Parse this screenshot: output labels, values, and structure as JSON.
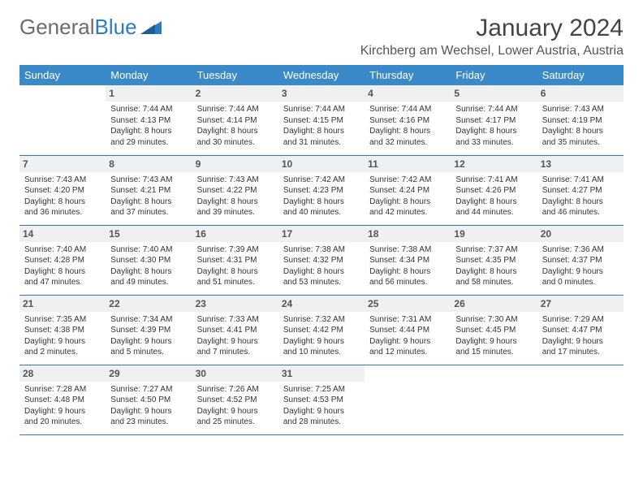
{
  "logo": {
    "part1": "General",
    "part2": "Blue"
  },
  "title": "January 2024",
  "location": "Kirchberg am Wechsel, Lower Austria, Austria",
  "colors": {
    "header_bg": "#3a8ac9",
    "row_border": "#2f7bbf",
    "daynum_bg": "#eef0f2",
    "text": "#333333"
  },
  "weekdays": [
    "Sunday",
    "Monday",
    "Tuesday",
    "Wednesday",
    "Thursday",
    "Friday",
    "Saturday"
  ],
  "weeks": [
    [
      {
        "n": ""
      },
      {
        "n": "1",
        "sr": "Sunrise: 7:44 AM",
        "ss": "Sunset: 4:13 PM",
        "dl": "Daylight: 8 hours and 29 minutes."
      },
      {
        "n": "2",
        "sr": "Sunrise: 7:44 AM",
        "ss": "Sunset: 4:14 PM",
        "dl": "Daylight: 8 hours and 30 minutes."
      },
      {
        "n": "3",
        "sr": "Sunrise: 7:44 AM",
        "ss": "Sunset: 4:15 PM",
        "dl": "Daylight: 8 hours and 31 minutes."
      },
      {
        "n": "4",
        "sr": "Sunrise: 7:44 AM",
        "ss": "Sunset: 4:16 PM",
        "dl": "Daylight: 8 hours and 32 minutes."
      },
      {
        "n": "5",
        "sr": "Sunrise: 7:44 AM",
        "ss": "Sunset: 4:17 PM",
        "dl": "Daylight: 8 hours and 33 minutes."
      },
      {
        "n": "6",
        "sr": "Sunrise: 7:43 AM",
        "ss": "Sunset: 4:19 PM",
        "dl": "Daylight: 8 hours and 35 minutes."
      }
    ],
    [
      {
        "n": "7",
        "sr": "Sunrise: 7:43 AM",
        "ss": "Sunset: 4:20 PM",
        "dl": "Daylight: 8 hours and 36 minutes."
      },
      {
        "n": "8",
        "sr": "Sunrise: 7:43 AM",
        "ss": "Sunset: 4:21 PM",
        "dl": "Daylight: 8 hours and 37 minutes."
      },
      {
        "n": "9",
        "sr": "Sunrise: 7:43 AM",
        "ss": "Sunset: 4:22 PM",
        "dl": "Daylight: 8 hours and 39 minutes."
      },
      {
        "n": "10",
        "sr": "Sunrise: 7:42 AM",
        "ss": "Sunset: 4:23 PM",
        "dl": "Daylight: 8 hours and 40 minutes."
      },
      {
        "n": "11",
        "sr": "Sunrise: 7:42 AM",
        "ss": "Sunset: 4:24 PM",
        "dl": "Daylight: 8 hours and 42 minutes."
      },
      {
        "n": "12",
        "sr": "Sunrise: 7:41 AM",
        "ss": "Sunset: 4:26 PM",
        "dl": "Daylight: 8 hours and 44 minutes."
      },
      {
        "n": "13",
        "sr": "Sunrise: 7:41 AM",
        "ss": "Sunset: 4:27 PM",
        "dl": "Daylight: 8 hours and 46 minutes."
      }
    ],
    [
      {
        "n": "14",
        "sr": "Sunrise: 7:40 AM",
        "ss": "Sunset: 4:28 PM",
        "dl": "Daylight: 8 hours and 47 minutes."
      },
      {
        "n": "15",
        "sr": "Sunrise: 7:40 AM",
        "ss": "Sunset: 4:30 PM",
        "dl": "Daylight: 8 hours and 49 minutes."
      },
      {
        "n": "16",
        "sr": "Sunrise: 7:39 AM",
        "ss": "Sunset: 4:31 PM",
        "dl": "Daylight: 8 hours and 51 minutes."
      },
      {
        "n": "17",
        "sr": "Sunrise: 7:38 AM",
        "ss": "Sunset: 4:32 PM",
        "dl": "Daylight: 8 hours and 53 minutes."
      },
      {
        "n": "18",
        "sr": "Sunrise: 7:38 AM",
        "ss": "Sunset: 4:34 PM",
        "dl": "Daylight: 8 hours and 56 minutes."
      },
      {
        "n": "19",
        "sr": "Sunrise: 7:37 AM",
        "ss": "Sunset: 4:35 PM",
        "dl": "Daylight: 8 hours and 58 minutes."
      },
      {
        "n": "20",
        "sr": "Sunrise: 7:36 AM",
        "ss": "Sunset: 4:37 PM",
        "dl": "Daylight: 9 hours and 0 minutes."
      }
    ],
    [
      {
        "n": "21",
        "sr": "Sunrise: 7:35 AM",
        "ss": "Sunset: 4:38 PM",
        "dl": "Daylight: 9 hours and 2 minutes."
      },
      {
        "n": "22",
        "sr": "Sunrise: 7:34 AM",
        "ss": "Sunset: 4:39 PM",
        "dl": "Daylight: 9 hours and 5 minutes."
      },
      {
        "n": "23",
        "sr": "Sunrise: 7:33 AM",
        "ss": "Sunset: 4:41 PM",
        "dl": "Daylight: 9 hours and 7 minutes."
      },
      {
        "n": "24",
        "sr": "Sunrise: 7:32 AM",
        "ss": "Sunset: 4:42 PM",
        "dl": "Daylight: 9 hours and 10 minutes."
      },
      {
        "n": "25",
        "sr": "Sunrise: 7:31 AM",
        "ss": "Sunset: 4:44 PM",
        "dl": "Daylight: 9 hours and 12 minutes."
      },
      {
        "n": "26",
        "sr": "Sunrise: 7:30 AM",
        "ss": "Sunset: 4:45 PM",
        "dl": "Daylight: 9 hours and 15 minutes."
      },
      {
        "n": "27",
        "sr": "Sunrise: 7:29 AM",
        "ss": "Sunset: 4:47 PM",
        "dl": "Daylight: 9 hours and 17 minutes."
      }
    ],
    [
      {
        "n": "28",
        "sr": "Sunrise: 7:28 AM",
        "ss": "Sunset: 4:48 PM",
        "dl": "Daylight: 9 hours and 20 minutes."
      },
      {
        "n": "29",
        "sr": "Sunrise: 7:27 AM",
        "ss": "Sunset: 4:50 PM",
        "dl": "Daylight: 9 hours and 23 minutes."
      },
      {
        "n": "30",
        "sr": "Sunrise: 7:26 AM",
        "ss": "Sunset: 4:52 PM",
        "dl": "Daylight: 9 hours and 25 minutes."
      },
      {
        "n": "31",
        "sr": "Sunrise: 7:25 AM",
        "ss": "Sunset: 4:53 PM",
        "dl": "Daylight: 9 hours and 28 minutes."
      },
      {
        "n": ""
      },
      {
        "n": ""
      },
      {
        "n": ""
      }
    ]
  ]
}
